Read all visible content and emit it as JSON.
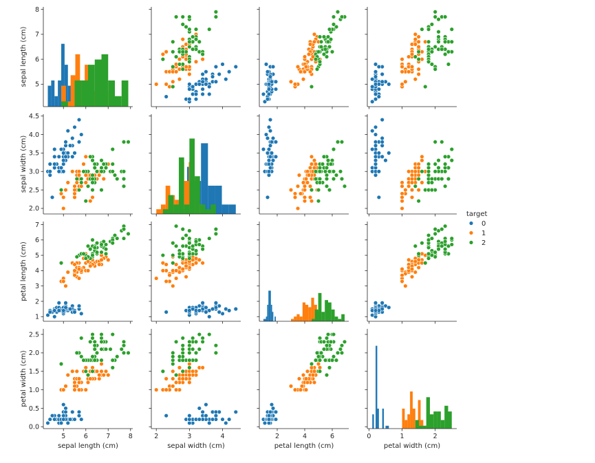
{
  "chart_data": {
    "type": "scatter",
    "subtype": "pairplot",
    "variables": [
      "sepal length (cm)",
      "sepal width (cm)",
      "petal length (cm)",
      "petal width (cm)"
    ],
    "axis_ranges": [
      [
        4.1,
        8.1
      ],
      [
        1.85,
        4.55
      ],
      [
        0.7,
        7.2
      ],
      [
        -0.05,
        2.65
      ]
    ],
    "ticks": [
      [
        5,
        6,
        7,
        8
      ],
      [
        2.0,
        2.5,
        3.0,
        3.5,
        4.0,
        4.5
      ],
      [
        1,
        2,
        3,
        4,
        5,
        6,
        7
      ],
      [
        0.0,
        0.5,
        1.0,
        1.5,
        2.0,
        2.5
      ]
    ],
    "tick_labels": [
      [
        "5",
        "6",
        "7",
        "8"
      ],
      [
        "2.0",
        "2.5",
        "3.0",
        "3.5",
        "4.0",
        "4.5"
      ],
      [
        "1",
        "2",
        "3",
        "4",
        "5",
        "6",
        "7"
      ],
      [
        "0.0",
        "0.5",
        "1.0",
        "1.5",
        "2.0",
        "2.5"
      ]
    ],
    "xtick_labels": [
      [
        "5",
        "6",
        "7",
        "8"
      ],
      [
        "2",
        "3",
        "4"
      ],
      [
        "2",
        "4",
        "6"
      ],
      [
        "0",
        "1",
        "2"
      ]
    ],
    "xtick_values": [
      [
        5,
        6,
        7,
        8
      ],
      [
        2,
        3,
        4
      ],
      [
        2,
        4,
        6
      ],
      [
        0,
        1,
        2
      ]
    ],
    "hue": "target",
    "legend": {
      "title": "target",
      "position": "right",
      "entries": [
        {
          "label": "0",
          "color": "#1f77b4"
        },
        {
          "label": "1",
          "color": "#ff7f0e"
        },
        {
          "label": "2",
          "color": "#2ca02c"
        }
      ]
    },
    "series": [
      {
        "name": "0",
        "color": "#1f77b4",
        "points": [
          [
            5.1,
            3.5,
            1.4,
            0.2
          ],
          [
            4.9,
            3.0,
            1.4,
            0.2
          ],
          [
            4.7,
            3.2,
            1.3,
            0.2
          ],
          [
            4.6,
            3.1,
            1.5,
            0.2
          ],
          [
            5.0,
            3.6,
            1.4,
            0.2
          ],
          [
            5.4,
            3.9,
            1.7,
            0.4
          ],
          [
            4.6,
            3.4,
            1.4,
            0.3
          ],
          [
            5.0,
            3.4,
            1.5,
            0.2
          ],
          [
            4.4,
            2.9,
            1.4,
            0.2
          ],
          [
            4.9,
            3.1,
            1.5,
            0.1
          ],
          [
            5.4,
            3.7,
            1.5,
            0.2
          ],
          [
            4.8,
            3.4,
            1.6,
            0.2
          ],
          [
            4.8,
            3.0,
            1.4,
            0.1
          ],
          [
            4.3,
            3.0,
            1.1,
            0.1
          ],
          [
            5.8,
            4.0,
            1.2,
            0.2
          ],
          [
            5.7,
            4.4,
            1.5,
            0.4
          ],
          [
            5.4,
            3.9,
            1.3,
            0.4
          ],
          [
            5.1,
            3.5,
            1.4,
            0.3
          ],
          [
            5.7,
            3.8,
            1.7,
            0.3
          ],
          [
            5.1,
            3.8,
            1.5,
            0.3
          ],
          [
            5.4,
            3.4,
            1.7,
            0.2
          ],
          [
            5.1,
            3.7,
            1.5,
            0.4
          ],
          [
            4.6,
            3.6,
            1.0,
            0.2
          ],
          [
            5.1,
            3.3,
            1.7,
            0.5
          ],
          [
            4.8,
            3.4,
            1.9,
            0.2
          ],
          [
            5.0,
            3.0,
            1.6,
            0.2
          ],
          [
            5.0,
            3.4,
            1.6,
            0.4
          ],
          [
            5.2,
            3.5,
            1.5,
            0.2
          ],
          [
            5.2,
            3.4,
            1.4,
            0.2
          ],
          [
            4.7,
            3.2,
            1.6,
            0.2
          ],
          [
            4.8,
            3.1,
            1.6,
            0.2
          ],
          [
            5.4,
            3.4,
            1.5,
            0.4
          ],
          [
            5.2,
            4.1,
            1.5,
            0.1
          ],
          [
            5.5,
            4.2,
            1.4,
            0.2
          ],
          [
            4.9,
            3.1,
            1.5,
            0.2
          ],
          [
            5.0,
            3.2,
            1.2,
            0.2
          ],
          [
            5.5,
            3.5,
            1.3,
            0.2
          ],
          [
            4.9,
            3.6,
            1.4,
            0.1
          ],
          [
            4.4,
            3.0,
            1.3,
            0.2
          ],
          [
            5.1,
            3.4,
            1.5,
            0.2
          ],
          [
            5.0,
            3.5,
            1.3,
            0.3
          ],
          [
            4.5,
            2.3,
            1.3,
            0.3
          ],
          [
            4.4,
            3.2,
            1.3,
            0.2
          ],
          [
            5.0,
            3.5,
            1.6,
            0.6
          ],
          [
            5.1,
            3.8,
            1.9,
            0.4
          ],
          [
            4.8,
            3.0,
            1.4,
            0.3
          ],
          [
            5.1,
            3.8,
            1.6,
            0.2
          ],
          [
            4.6,
            3.2,
            1.4,
            0.2
          ],
          [
            5.3,
            3.7,
            1.5,
            0.2
          ],
          [
            5.0,
            3.3,
            1.4,
            0.2
          ]
        ]
      },
      {
        "name": "1",
        "color": "#ff7f0e",
        "points": [
          [
            7.0,
            3.2,
            4.7,
            1.4
          ],
          [
            6.4,
            3.2,
            4.5,
            1.5
          ],
          [
            6.9,
            3.1,
            4.9,
            1.5
          ],
          [
            5.5,
            2.3,
            4.0,
            1.3
          ],
          [
            6.5,
            2.8,
            4.6,
            1.5
          ],
          [
            5.7,
            2.8,
            4.5,
            1.3
          ],
          [
            6.3,
            3.3,
            4.7,
            1.6
          ],
          [
            4.9,
            2.4,
            3.3,
            1.0
          ],
          [
            6.6,
            2.9,
            4.6,
            1.3
          ],
          [
            5.2,
            2.7,
            3.9,
            1.4
          ],
          [
            5.0,
            2.0,
            3.5,
            1.0
          ],
          [
            5.9,
            3.0,
            4.2,
            1.5
          ],
          [
            6.0,
            2.2,
            4.0,
            1.0
          ],
          [
            6.1,
            2.9,
            4.7,
            1.4
          ],
          [
            5.6,
            2.9,
            3.6,
            1.3
          ],
          [
            6.7,
            3.1,
            4.4,
            1.4
          ],
          [
            5.6,
            3.0,
            4.5,
            1.5
          ],
          [
            5.8,
            2.7,
            4.1,
            1.0
          ],
          [
            6.2,
            2.2,
            4.5,
            1.5
          ],
          [
            5.6,
            2.5,
            3.9,
            1.1
          ],
          [
            5.9,
            3.2,
            4.8,
            1.8
          ],
          [
            6.1,
            2.8,
            4.0,
            1.3
          ],
          [
            6.3,
            2.5,
            4.9,
            1.5
          ],
          [
            6.1,
            2.8,
            4.7,
            1.2
          ],
          [
            6.4,
            2.9,
            4.3,
            1.3
          ],
          [
            6.6,
            3.0,
            4.4,
            1.4
          ],
          [
            6.8,
            2.8,
            4.8,
            1.4
          ],
          [
            6.7,
            3.0,
            5.0,
            1.7
          ],
          [
            6.0,
            2.9,
            4.5,
            1.5
          ],
          [
            5.7,
            2.6,
            3.5,
            1.0
          ],
          [
            5.5,
            2.4,
            3.8,
            1.1
          ],
          [
            5.5,
            2.4,
            3.7,
            1.0
          ],
          [
            5.8,
            2.7,
            3.9,
            1.2
          ],
          [
            6.0,
            2.7,
            5.1,
            1.6
          ],
          [
            5.4,
            3.0,
            4.5,
            1.5
          ],
          [
            6.0,
            3.4,
            4.5,
            1.6
          ],
          [
            6.7,
            3.1,
            4.7,
            1.5
          ],
          [
            6.3,
            2.3,
            4.4,
            1.3
          ],
          [
            5.6,
            3.0,
            4.1,
            1.3
          ],
          [
            5.5,
            2.5,
            4.0,
            1.3
          ],
          [
            5.5,
            2.6,
            4.4,
            1.2
          ],
          [
            6.1,
            3.0,
            4.6,
            1.4
          ],
          [
            5.8,
            2.6,
            4.0,
            1.2
          ],
          [
            5.0,
            2.3,
            3.3,
            1.0
          ],
          [
            5.6,
            2.7,
            4.2,
            1.3
          ],
          [
            5.7,
            3.0,
            4.2,
            1.2
          ],
          [
            5.7,
            2.9,
            4.2,
            1.3
          ],
          [
            6.2,
            2.9,
            4.3,
            1.3
          ],
          [
            5.1,
            2.5,
            3.0,
            1.1
          ],
          [
            5.7,
            2.8,
            4.1,
            1.3
          ]
        ]
      },
      {
        "name": "2",
        "color": "#2ca02c",
        "points": [
          [
            6.3,
            3.3,
            6.0,
            2.5
          ],
          [
            5.8,
            2.7,
            5.1,
            1.9
          ],
          [
            7.1,
            3.0,
            5.9,
            2.1
          ],
          [
            6.3,
            2.9,
            5.6,
            1.8
          ],
          [
            6.5,
            3.0,
            5.8,
            2.2
          ],
          [
            7.6,
            3.0,
            6.6,
            2.1
          ],
          [
            4.9,
            2.5,
            4.5,
            1.7
          ],
          [
            7.3,
            2.9,
            6.3,
            1.8
          ],
          [
            6.7,
            2.5,
            5.8,
            1.8
          ],
          [
            7.2,
            3.6,
            6.1,
            2.5
          ],
          [
            6.5,
            3.2,
            5.1,
            2.0
          ],
          [
            6.4,
            2.7,
            5.3,
            1.9
          ],
          [
            6.8,
            3.0,
            5.5,
            2.1
          ],
          [
            5.7,
            2.5,
            5.0,
            2.0
          ],
          [
            5.8,
            2.8,
            5.1,
            2.4
          ],
          [
            6.4,
            3.2,
            5.3,
            2.3
          ],
          [
            6.5,
            3.0,
            5.5,
            1.8
          ],
          [
            7.7,
            3.8,
            6.7,
            2.2
          ],
          [
            7.7,
            2.6,
            6.9,
            2.3
          ],
          [
            6.0,
            2.2,
            5.0,
            1.5
          ],
          [
            6.9,
            3.2,
            5.7,
            2.3
          ],
          [
            5.6,
            2.8,
            4.9,
            2.0
          ],
          [
            7.7,
            2.8,
            6.7,
            2.0
          ],
          [
            6.3,
            2.7,
            4.9,
            1.8
          ],
          [
            6.7,
            3.3,
            5.7,
            2.1
          ],
          [
            7.2,
            3.2,
            6.0,
            1.8
          ],
          [
            6.2,
            2.8,
            4.8,
            1.8
          ],
          [
            6.1,
            3.0,
            4.9,
            1.8
          ],
          [
            6.4,
            2.8,
            5.6,
            2.1
          ],
          [
            7.2,
            3.0,
            5.8,
            1.6
          ],
          [
            7.4,
            2.8,
            6.1,
            1.9
          ],
          [
            7.9,
            3.8,
            6.4,
            2.0
          ],
          [
            6.4,
            2.8,
            5.6,
            2.2
          ],
          [
            6.3,
            2.8,
            5.1,
            1.5
          ],
          [
            6.1,
            2.6,
            5.6,
            1.4
          ],
          [
            7.7,
            3.0,
            6.1,
            2.3
          ],
          [
            6.3,
            3.4,
            5.6,
            2.4
          ],
          [
            6.4,
            3.1,
            5.5,
            1.8
          ],
          [
            6.0,
            3.0,
            4.8,
            1.8
          ],
          [
            6.9,
            3.1,
            5.4,
            2.1
          ],
          [
            6.7,
            3.1,
            5.6,
            2.4
          ],
          [
            6.9,
            3.1,
            5.1,
            2.3
          ],
          [
            5.8,
            2.7,
            5.1,
            1.9
          ],
          [
            6.8,
            3.2,
            5.9,
            2.3
          ],
          [
            6.7,
            3.3,
            5.7,
            2.5
          ],
          [
            6.7,
            3.0,
            5.2,
            2.3
          ],
          [
            6.3,
            2.5,
            5.0,
            1.9
          ],
          [
            6.5,
            3.0,
            5.2,
            2.0
          ],
          [
            6.2,
            3.4,
            5.4,
            2.3
          ],
          [
            5.9,
            3.0,
            5.1,
            1.8
          ]
        ]
      }
    ]
  }
}
